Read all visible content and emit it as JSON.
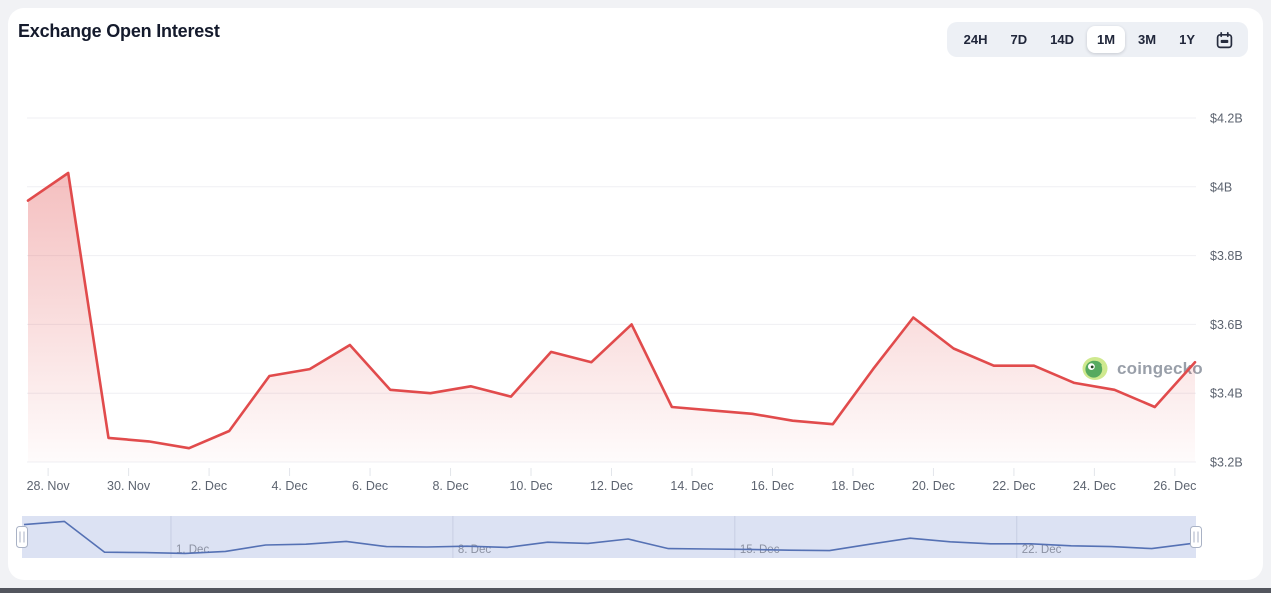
{
  "header": {
    "title": "Exchange Open Interest"
  },
  "toolbar": {
    "ranges": [
      {
        "label": "24H",
        "active": false
      },
      {
        "label": "7D",
        "active": false
      },
      {
        "label": "14D",
        "active": false
      },
      {
        "label": "1M",
        "active": true
      },
      {
        "label": "3M",
        "active": false
      },
      {
        "label": "1Y",
        "active": false
      }
    ]
  },
  "watermark": {
    "text": "coingecko"
  },
  "chart_data": {
    "type": "area",
    "title": "Exchange Open Interest",
    "unit": "USD billions",
    "grid": "horizontal",
    "legend": "none",
    "ylim": [
      3.2,
      4.2
    ],
    "line_color": "#e14b4c",
    "fill_color": "#e14b4c",
    "x": [
      "27. Nov",
      "28. Nov",
      "29. Nov",
      "30. Nov",
      "1. Dec",
      "2. Dec",
      "3. Dec",
      "4. Dec",
      "5. Dec",
      "6. Dec",
      "7. Dec",
      "8. Dec",
      "9. Dec",
      "10. Dec",
      "11. Dec",
      "12. Dec",
      "13. Dec",
      "14. Dec",
      "15. Dec",
      "16. Dec",
      "17. Dec",
      "18. Dec",
      "19. Dec",
      "20. Dec",
      "21. Dec",
      "22. Dec",
      "23. Dec",
      "24. Dec",
      "25. Dec",
      "26. Dec"
    ],
    "series": [
      {
        "name": "Exchange Open Interest ($B)",
        "values": [
          3.96,
          4.04,
          3.27,
          3.26,
          3.24,
          3.29,
          3.45,
          3.47,
          3.54,
          3.41,
          3.4,
          3.42,
          3.39,
          3.52,
          3.49,
          3.6,
          3.36,
          3.35,
          3.34,
          3.32,
          3.31,
          3.47,
          3.62,
          3.53,
          3.48,
          3.48,
          3.43,
          3.41,
          3.36,
          3.49
        ]
      }
    ],
    "y_axis": {
      "position": "right",
      "ticks": [
        {
          "value": 4.2,
          "label": "$4.2B"
        },
        {
          "value": 4.0,
          "label": "$4B"
        },
        {
          "value": 3.8,
          "label": "$3.8B"
        },
        {
          "value": 3.6,
          "label": "$3.6B"
        },
        {
          "value": 3.4,
          "label": "$3.4B"
        },
        {
          "value": 3.2,
          "label": "$3.2B"
        }
      ]
    },
    "x_axis": {
      "labels": [
        "28. Nov",
        "30. Nov",
        "2. Dec",
        "4. Dec",
        "6. Dec",
        "8. Dec",
        "10. Dec",
        "12. Dec",
        "14. Dec",
        "16. Dec",
        "18. Dec",
        "20. Dec",
        "22. Dec",
        "24. Dec",
        "26. Dec"
      ]
    },
    "navigator": {
      "background": "#dce2f3",
      "line_color": "#5571b4",
      "labels": [
        {
          "label": "1. Dec",
          "day_index": 3.5
        },
        {
          "label": "8. Dec",
          "day_index": 10.5
        },
        {
          "label": "15. Dec",
          "day_index": 17.5
        },
        {
          "label": "22. Dec",
          "day_index": 24.5
        }
      ]
    }
  }
}
